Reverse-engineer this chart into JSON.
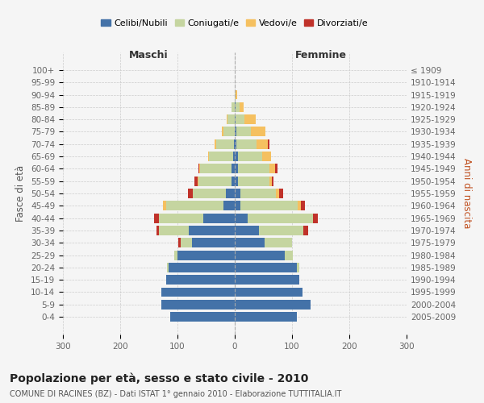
{
  "age_groups": [
    "100+",
    "95-99",
    "90-94",
    "85-89",
    "80-84",
    "75-79",
    "70-74",
    "65-69",
    "60-64",
    "55-59",
    "50-54",
    "45-49",
    "40-44",
    "35-39",
    "30-34",
    "25-29",
    "20-24",
    "15-19",
    "10-14",
    "5-9",
    "0-4"
  ],
  "birth_years": [
    "≤ 1909",
    "1910-1914",
    "1915-1919",
    "1920-1924",
    "1925-1929",
    "1930-1934",
    "1935-1939",
    "1940-1944",
    "1945-1949",
    "1950-1954",
    "1955-1959",
    "1960-1964",
    "1965-1969",
    "1970-1974",
    "1975-1979",
    "1980-1984",
    "1985-1989",
    "1990-1994",
    "1995-1999",
    "2000-2004",
    "2005-2009"
  ],
  "males": {
    "celibi": [
      0,
      0,
      0,
      0,
      0,
      0,
      2,
      3,
      5,
      5,
      15,
      20,
      55,
      80,
      75,
      100,
      115,
      120,
      128,
      128,
      112
    ],
    "coniugati": [
      0,
      0,
      0,
      5,
      12,
      20,
      30,
      42,
      55,
      58,
      58,
      100,
      78,
      52,
      20,
      5,
      3,
      0,
      0,
      0,
      0
    ],
    "vedovi": [
      0,
      0,
      0,
      0,
      2,
      3,
      3,
      2,
      2,
      2,
      0,
      5,
      0,
      0,
      0,
      0,
      0,
      0,
      0,
      0,
      0
    ],
    "divorziati": [
      0,
      0,
      0,
      0,
      0,
      0,
      0,
      0,
      2,
      5,
      8,
      0,
      8,
      5,
      3,
      0,
      0,
      0,
      0,
      0,
      0
    ]
  },
  "females": {
    "nubili": [
      0,
      0,
      0,
      2,
      2,
      3,
      3,
      5,
      5,
      5,
      10,
      10,
      22,
      42,
      52,
      88,
      108,
      112,
      118,
      133,
      108
    ],
    "coniugate": [
      0,
      0,
      2,
      6,
      15,
      25,
      35,
      43,
      55,
      55,
      62,
      100,
      115,
      78,
      48,
      14,
      5,
      0,
      0,
      0,
      0
    ],
    "vedove": [
      0,
      0,
      2,
      8,
      20,
      25,
      20,
      15,
      10,
      5,
      5,
      5,
      0,
      0,
      0,
      0,
      0,
      0,
      0,
      0,
      0
    ],
    "divorziate": [
      0,
      0,
      0,
      0,
      0,
      0,
      3,
      0,
      5,
      2,
      8,
      8,
      8,
      8,
      0,
      0,
      0,
      0,
      0,
      0,
      0
    ]
  },
  "colors": {
    "celibi": "#4472a8",
    "coniugati": "#c5d5a0",
    "vedovi": "#f5c060",
    "divorziati": "#c0322a"
  },
  "legend_labels": [
    "Celibi/Nubili",
    "Coniugati/e",
    "Vedovi/e",
    "Divorziati/e"
  ],
  "xlim": 300,
  "title": "Popolazione per età, sesso e stato civile - 2010",
  "subtitle": "COMUNE DI RACINES (BZ) - Dati ISTAT 1° gennaio 2010 - Elaborazione TUTTITALIA.IT",
  "ylabel_left": "Fasce di età",
  "ylabel_right": "Anni di nascita",
  "xlabel_maschi": "Maschi",
  "xlabel_femmine": "Femmine",
  "bg_color": "#f5f5f5"
}
